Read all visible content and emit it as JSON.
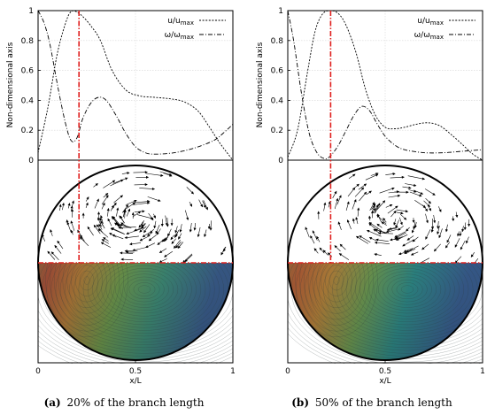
{
  "chart_data": [
    {
      "type": "line",
      "caption_tag": "(a)",
      "caption_text": "20% of the branch length",
      "ylabel": "Non-dimensional axis",
      "xlabel": "x/L",
      "xlim": [
        0,
        1
      ],
      "ylim": [
        0,
        1
      ],
      "x_ticks": [
        "0",
        "0.5",
        "1"
      ],
      "y_ticks": [
        "0",
        "0.2",
        "0.4",
        "0.6",
        "0.8",
        "1"
      ],
      "grid": true,
      "legend_position": "top-right",
      "marker_x": 0.21,
      "series": [
        {
          "name": "u/u",
          "name_sub": "max",
          "style": "dotted",
          "x": [
            0,
            0.05,
            0.1,
            0.15,
            0.18,
            0.2,
            0.23,
            0.27,
            0.32,
            0.38,
            0.45,
            0.52,
            0.6,
            0.68,
            0.75,
            0.82,
            0.88,
            0.93,
            0.97,
            1.0
          ],
          "y": [
            0.05,
            0.35,
            0.72,
            0.95,
            1.0,
            0.99,
            0.96,
            0.9,
            0.8,
            0.6,
            0.47,
            0.43,
            0.42,
            0.41,
            0.39,
            0.33,
            0.22,
            0.12,
            0.05,
            0.0
          ]
        },
        {
          "name": "ω/ω",
          "name_sub": "max",
          "style": "dashdot",
          "x": [
            0,
            0.03,
            0.06,
            0.1,
            0.14,
            0.17,
            0.2,
            0.23,
            0.27,
            0.31,
            0.35,
            0.4,
            0.45,
            0.5,
            0.55,
            0.6,
            0.7,
            0.8,
            0.9,
            0.95,
            1.0
          ],
          "y": [
            1.0,
            0.92,
            0.78,
            0.5,
            0.25,
            0.13,
            0.15,
            0.28,
            0.38,
            0.42,
            0.4,
            0.3,
            0.18,
            0.09,
            0.05,
            0.04,
            0.05,
            0.08,
            0.13,
            0.18,
            0.24
          ]
        }
      ]
    },
    {
      "type": "line",
      "caption_tag": "(b)",
      "caption_text": "50% of the branch length",
      "ylabel": "Non-dimensional axis",
      "xlabel": "x/L",
      "xlim": [
        0,
        1
      ],
      "ylim": [
        0,
        1
      ],
      "x_ticks": [
        "0",
        "0.5",
        "1"
      ],
      "y_ticks": [
        "0",
        "0.2",
        "0.4",
        "0.6",
        "0.8",
        "1"
      ],
      "grid": true,
      "legend_position": "top-right",
      "marker_x": 0.22,
      "series": [
        {
          "name": "u/u",
          "name_sub": "max",
          "style": "dotted",
          "x": [
            0,
            0.05,
            0.1,
            0.14,
            0.18,
            0.22,
            0.26,
            0.3,
            0.35,
            0.4,
            0.45,
            0.5,
            0.55,
            0.6,
            0.66,
            0.72,
            0.78,
            0.84,
            0.9,
            0.95,
            1.0
          ],
          "y": [
            0.02,
            0.2,
            0.58,
            0.86,
            0.98,
            1.0,
            0.98,
            0.9,
            0.72,
            0.47,
            0.3,
            0.22,
            0.21,
            0.22,
            0.24,
            0.25,
            0.23,
            0.17,
            0.1,
            0.04,
            0.0
          ]
        },
        {
          "name": "ω/ω",
          "name_sub": "max",
          "style": "dashdot",
          "x": [
            0,
            0.03,
            0.07,
            0.11,
            0.15,
            0.19,
            0.22,
            0.26,
            0.3,
            0.34,
            0.38,
            0.42,
            0.46,
            0.5,
            0.55,
            0.6,
            0.7,
            0.8,
            0.9,
            1.0
          ],
          "y": [
            1.0,
            0.8,
            0.45,
            0.18,
            0.05,
            0.01,
            0.03,
            0.1,
            0.2,
            0.3,
            0.36,
            0.33,
            0.24,
            0.16,
            0.1,
            0.07,
            0.05,
            0.05,
            0.06,
            0.07
          ]
        }
      ]
    }
  ]
}
